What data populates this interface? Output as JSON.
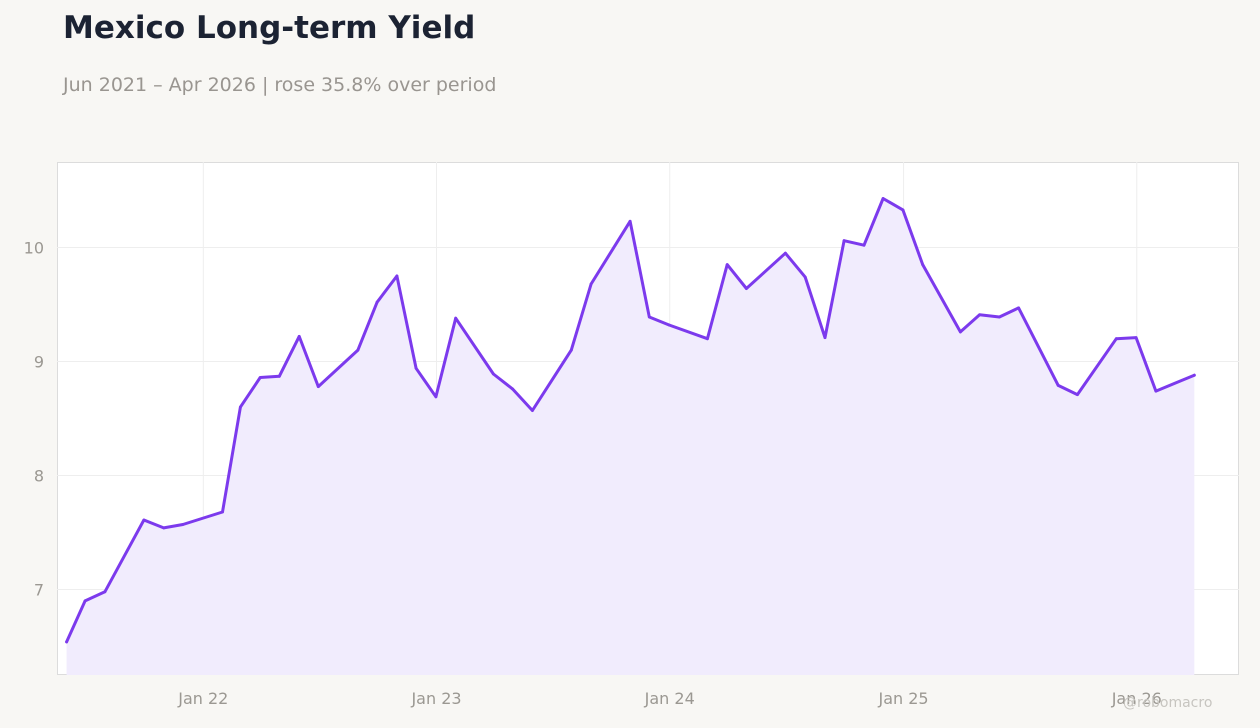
{
  "header": {
    "title": "Mexico Long-term Yield",
    "subtitle": "Jun 2021 – Apr 2026 | rose 35.8% over period"
  },
  "watermark": "@robomacro",
  "colors": {
    "line": "#7c3aed",
    "fill": "#f1ecfd",
    "background": "#f8f7f4",
    "plot_background": "#ffffff",
    "grid": "#eeeeee"
  },
  "chart_data": {
    "type": "area",
    "title": "Mexico Long-term Yield",
    "subtitle": "Jun 2021 – Apr 2026 | rose 35.8% over period",
    "xlabel": "",
    "ylabel": "",
    "x_ticks": [
      "Jan 22",
      "Jan 23",
      "Jan 24",
      "Jan 25",
      "Jan 26"
    ],
    "y_ticks": [
      7,
      8,
      9,
      10
    ],
    "xlim": [
      "2021-05-17",
      "2026-06-10"
    ],
    "ylim": [
      6.25,
      10.75
    ],
    "grid": true,
    "legend": "none",
    "series": [
      {
        "points": [
          [
            "2021-06-01",
            6.54
          ],
          [
            "2021-06-30",
            6.9
          ],
          [
            "2021-07-31",
            6.98
          ],
          [
            "2021-09-30",
            7.61
          ],
          [
            "2021-10-31",
            7.54
          ],
          [
            "2021-11-30",
            7.57
          ],
          [
            "2022-01-31",
            7.68
          ],
          [
            "2022-02-28",
            8.6
          ],
          [
            "2022-03-31",
            8.86
          ],
          [
            "2022-04-30",
            8.87
          ],
          [
            "2022-05-31",
            9.22
          ],
          [
            "2022-06-30",
            8.78
          ],
          [
            "2022-08-31",
            9.1
          ],
          [
            "2022-09-30",
            9.52
          ],
          [
            "2022-10-31",
            9.75
          ],
          [
            "2022-11-30",
            8.94
          ],
          [
            "2022-12-31",
            8.69
          ],
          [
            "2023-01-31",
            9.38
          ],
          [
            "2023-03-31",
            8.89
          ],
          [
            "2023-04-30",
            8.76
          ],
          [
            "2023-05-31",
            8.57
          ],
          [
            "2023-07-31",
            9.1
          ],
          [
            "2023-08-31",
            9.68
          ],
          [
            "2023-10-31",
            10.23
          ],
          [
            "2023-11-30",
            9.39
          ],
          [
            "2023-12-31",
            9.32
          ],
          [
            "2024-02-29",
            9.2
          ],
          [
            "2024-03-31",
            9.85
          ],
          [
            "2024-04-30",
            9.64
          ],
          [
            "2024-06-30",
            9.95
          ],
          [
            "2024-07-31",
            9.74
          ],
          [
            "2024-08-31",
            9.21
          ],
          [
            "2024-09-30",
            10.06
          ],
          [
            "2024-10-31",
            10.02
          ],
          [
            "2024-11-30",
            10.43
          ],
          [
            "2024-12-31",
            10.33
          ],
          [
            "2025-01-31",
            9.85
          ],
          [
            "2025-03-31",
            9.26
          ],
          [
            "2025-04-30",
            9.41
          ],
          [
            "2025-05-31",
            9.39
          ],
          [
            "2025-06-30",
            9.47
          ],
          [
            "2025-08-31",
            8.79
          ],
          [
            "2025-09-30",
            8.71
          ],
          [
            "2025-11-30",
            9.2
          ],
          [
            "2025-12-31",
            9.21
          ],
          [
            "2026-01-31",
            8.74
          ],
          [
            "2026-04-01",
            8.88
          ]
        ]
      }
    ]
  }
}
